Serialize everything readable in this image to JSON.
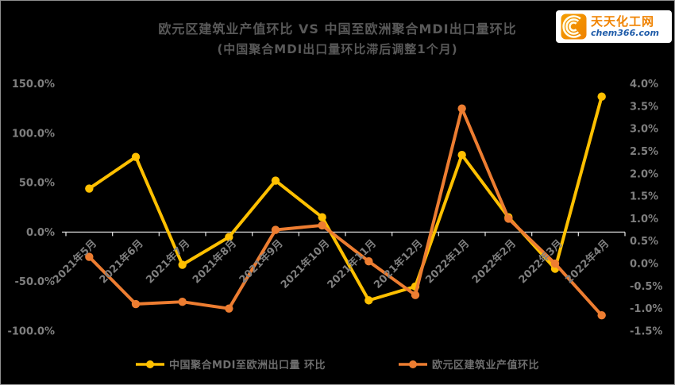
{
  "header": {
    "title": "欧元区建筑业产值环比 VS 中国至欧洲聚合MDI出口量环比",
    "subtitle": "(中国聚合MDI出口量环比滞后调整1个月)"
  },
  "logo": {
    "name": "天天化工网",
    "domain": "chem366.com"
  },
  "colors": {
    "background": "#000000",
    "series_yellow": "#FFC000",
    "series_orange": "#ED7D31",
    "axis_line": "#D9D9D9",
    "tick_label": "#7f7f7f",
    "title_text": "#595959",
    "logo_orange": "#F08300",
    "logo_blue": "#1F5CA9"
  },
  "chart_data": {
    "type": "line",
    "title": "欧元区建筑业产值环比 VS 中国至欧洲聚合MDI出口量环比",
    "subtitle": "(中国聚合MDI出口量环比滞后调整1个月)",
    "categories": [
      "2021年5月",
      "2021年6月",
      "2021年7月",
      "2021年8月",
      "2021年9月",
      "2021年10月",
      "2021年11月",
      "2021年12月",
      "2022年1月",
      "2022年2月",
      "2022年3月",
      "2022年4月"
    ],
    "series": [
      {
        "name": "中国聚合MDI至欧洲出口量 环比",
        "axis": "left",
        "color": "#FFC000",
        "marker": "circle",
        "values": [
          44,
          76,
          -33,
          -5,
          52,
          15,
          -69,
          -55,
          78,
          15,
          -37,
          137
        ]
      },
      {
        "name": "欧元区建筑业产值环比",
        "axis": "right",
        "color": "#ED7D31",
        "marker": "circle",
        "values": [
          0.15,
          -0.9,
          -0.85,
          -1.0,
          0.75,
          0.85,
          0.05,
          -0.7,
          3.45,
          1.0,
          0.0,
          -1.15
        ]
      }
    ],
    "left_axis": {
      "labels": [
        "150.0%",
        "100.0%",
        "50.0%",
        "0.0%",
        "-50.0%",
        "-100.0%"
      ],
      "values": [
        150,
        100,
        50,
        0,
        -50,
        -100
      ],
      "min": -100,
      "max": 150
    },
    "right_axis": {
      "labels": [
        "4.0%",
        "3.5%",
        "3.0%",
        "2.5%",
        "2.0%",
        "1.5%",
        "1.0%",
        "0.5%",
        "0.0%",
        "-0.5%",
        "-1.0%",
        "-1.5%"
      ],
      "values": [
        4,
        3.5,
        3,
        2.5,
        2,
        1.5,
        1,
        0.5,
        0,
        -0.5,
        -1,
        -1.5
      ],
      "min": -1.5,
      "max": 4
    },
    "x_axis": {
      "zero_line": true,
      "tick_marks": true,
      "label_rotation_deg": -45
    },
    "legend_position": "bottom",
    "grid": false
  }
}
